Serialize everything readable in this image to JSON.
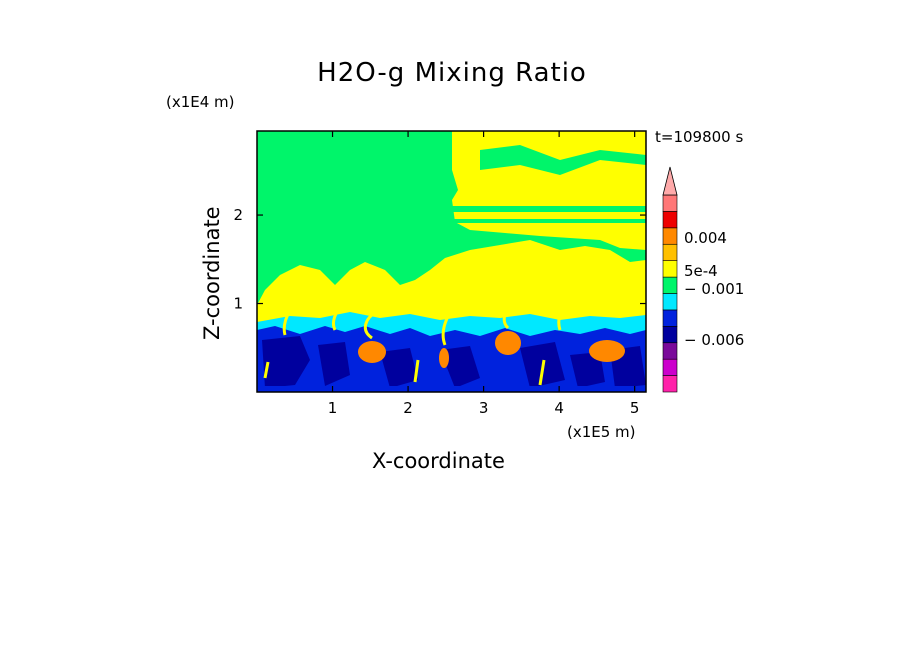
{
  "chart_data": {
    "type": "heatmap",
    "title": "H2O-g Mixing Ratio",
    "xlabel": "X-coordinate",
    "ylabel": "Z-coordinate",
    "x_unit": "(x1E5 m)",
    "y_unit": "(x1E4 m)",
    "time_label": "t=109800 s",
    "xlim": [
      0,
      5.15
    ],
    "ylim": [
      0,
      2.95
    ],
    "x_ticks": [
      1,
      2,
      3,
      4,
      5
    ],
    "y_ticks": [
      1,
      2
    ],
    "colorbar": {
      "colors": [
        "#ff22aa",
        "#cc00cc",
        "#7a0a9a",
        "#00009e",
        "#0022dd",
        "#00e8ff",
        "#00f56a",
        "#ffff00",
        "#ffc000",
        "#ff8800",
        "#ee0000",
        "#ff7777",
        "#ffaaaa"
      ],
      "labels": [
        "0.004",
        "5e-4",
        "− 0.001",
        "− 0.006"
      ],
      "label_values": [
        0.004,
        0.0005,
        -0.001,
        -0.006
      ]
    }
  }
}
